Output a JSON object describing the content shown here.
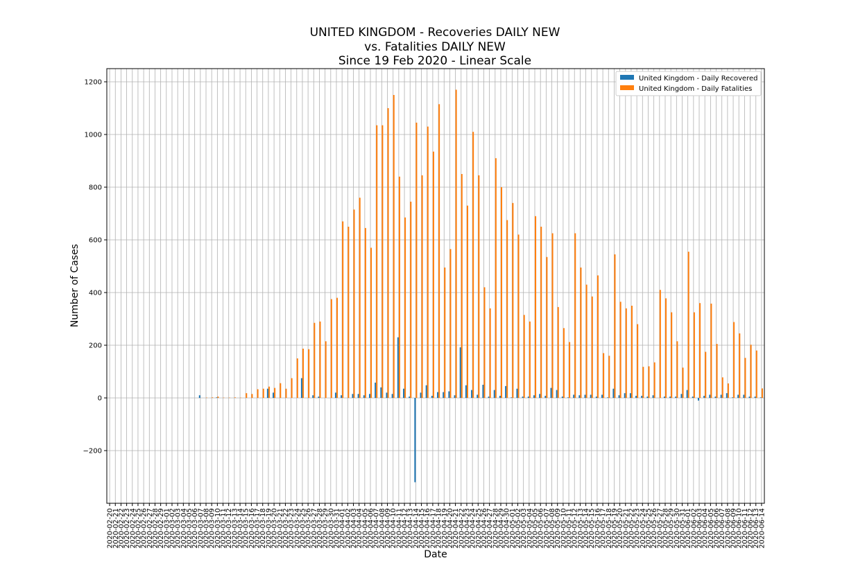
{
  "chart_data": {
    "type": "bar",
    "title": [
      "UNITED KINGDOM - Recoveries DAILY NEW",
      "vs. Fatalities DAILY NEW",
      "Since 19 Feb 2020 - Linear Scale"
    ],
    "xlabel": "Date",
    "ylabel": "Number of Cases",
    "ylim": [
      -400,
      1250
    ],
    "yticks": [
      -200,
      0,
      200,
      400,
      600,
      800,
      1000,
      1200
    ],
    "grid": true,
    "legend_position": "top-right",
    "colors": {
      "recovered": "#1f77b4",
      "fatalities": "#ff7f0e"
    },
    "categories": [
      "2020-02-20",
      "2020-02-21",
      "2020-02-22",
      "2020-02-23",
      "2020-02-24",
      "2020-02-25",
      "2020-02-26",
      "2020-02-27",
      "2020-02-28",
      "2020-02-29",
      "2020-03-01",
      "2020-03-02",
      "2020-03-03",
      "2020-03-04",
      "2020-03-05",
      "2020-03-06",
      "2020-03-07",
      "2020-03-08",
      "2020-03-09",
      "2020-03-10",
      "2020-03-11",
      "2020-03-12",
      "2020-03-13",
      "2020-03-14",
      "2020-03-15",
      "2020-03-16",
      "2020-03-17",
      "2020-03-18",
      "2020-03-19",
      "2020-03-20",
      "2020-03-21",
      "2020-03-22",
      "2020-03-23",
      "2020-03-24",
      "2020-03-25",
      "2020-03-26",
      "2020-03-27",
      "2020-03-28",
      "2020-03-29",
      "2020-03-30",
      "2020-03-31",
      "2020-04-01",
      "2020-04-02",
      "2020-04-03",
      "2020-04-04",
      "2020-04-05",
      "2020-04-06",
      "2020-04-07",
      "2020-04-08",
      "2020-04-09",
      "2020-04-10",
      "2020-04-11",
      "2020-04-12",
      "2020-04-13",
      "2020-04-14",
      "2020-04-15",
      "2020-04-16",
      "2020-04-17",
      "2020-04-18",
      "2020-04-19",
      "2020-04-20",
      "2020-04-21",
      "2020-04-22",
      "2020-04-23",
      "2020-04-24",
      "2020-04-25",
      "2020-04-26",
      "2020-04-27",
      "2020-04-28",
      "2020-04-29",
      "2020-04-30",
      "2020-05-01",
      "2020-05-02",
      "2020-05-03",
      "2020-05-04",
      "2020-05-05",
      "2020-05-06",
      "2020-05-07",
      "2020-05-08",
      "2020-05-09",
      "2020-05-10",
      "2020-05-11",
      "2020-05-12",
      "2020-05-13",
      "2020-05-14",
      "2020-05-15",
      "2020-05-16",
      "2020-05-17",
      "2020-05-18",
      "2020-05-19",
      "2020-05-20",
      "2020-05-21",
      "2020-05-22",
      "2020-05-23",
      "2020-05-24",
      "2020-05-25",
      "2020-05-26",
      "2020-05-27",
      "2020-05-28",
      "2020-05-29",
      "2020-05-30",
      "2020-05-31",
      "2020-06-01",
      "2020-06-02",
      "2020-06-03",
      "2020-06-04",
      "2020-06-05",
      "2020-06-06",
      "2020-06-07",
      "2020-06-08",
      "2020-06-09",
      "2020-06-10",
      "2020-06-11",
      "2020-06-12",
      "2020-06-13",
      "2020-06-14"
    ],
    "series": [
      {
        "name": "United Kingdom - Daily Recovered",
        "values": [
          0,
          0,
          0,
          0,
          0,
          0,
          0,
          0,
          0,
          0,
          0,
          0,
          0,
          0,
          0,
          0,
          10,
          0,
          0,
          2,
          0,
          0,
          0,
          0,
          0,
          0,
          0,
          0,
          35,
          20,
          0,
          0,
          0,
          0,
          75,
          0,
          10,
          5,
          0,
          0,
          20,
          10,
          0,
          15,
          15,
          10,
          15,
          58,
          40,
          20,
          15,
          230,
          35,
          5,
          -320,
          20,
          48,
          8,
          22,
          22,
          25,
          10,
          192,
          48,
          30,
          12,
          50,
          5,
          30,
          8,
          45,
          2,
          35,
          5,
          5,
          10,
          15,
          8,
          38,
          30,
          5,
          2,
          12,
          10,
          12,
          12,
          5,
          12,
          2,
          35,
          10,
          18,
          18,
          8,
          8,
          5,
          10,
          0,
          5,
          5,
          5,
          15,
          30,
          5,
          -10,
          8,
          12,
          5,
          12,
          18,
          2,
          12,
          12,
          5,
          5,
          2
        ]
      },
      {
        "name": "United Kingdom - Daily Fatalities",
        "values": [
          0,
          0,
          0,
          0,
          0,
          0,
          0,
          0,
          0,
          0,
          0,
          0,
          0,
          0,
          0,
          0,
          0,
          1,
          2,
          5,
          1,
          1,
          2,
          1,
          18,
          15,
          33,
          35,
          43,
          38,
          56,
          35,
          75,
          150,
          187,
          185,
          285,
          290,
          215,
          375,
          380,
          670,
          650,
          715,
          760,
          645,
          570,
          1035,
          1035,
          1100,
          1150,
          840,
          685,
          745,
          1045,
          845,
          1030,
          935,
          1115,
          495,
          565,
          1170,
          850,
          730,
          1010,
          845,
          420,
          340,
          910,
          800,
          675,
          740,
          620,
          315,
          290,
          690,
          650,
          535,
          625,
          345,
          265,
          212,
          625,
          495,
          430,
          385,
          465,
          170,
          160,
          545,
          365,
          340,
          350,
          280,
          118,
          120,
          135,
          410,
          378,
          325,
          215,
          115,
          555,
          325,
          360,
          175,
          358,
          205,
          78,
          55,
          288,
          245,
          152,
          202,
          180,
          36
        ]
      }
    ]
  }
}
